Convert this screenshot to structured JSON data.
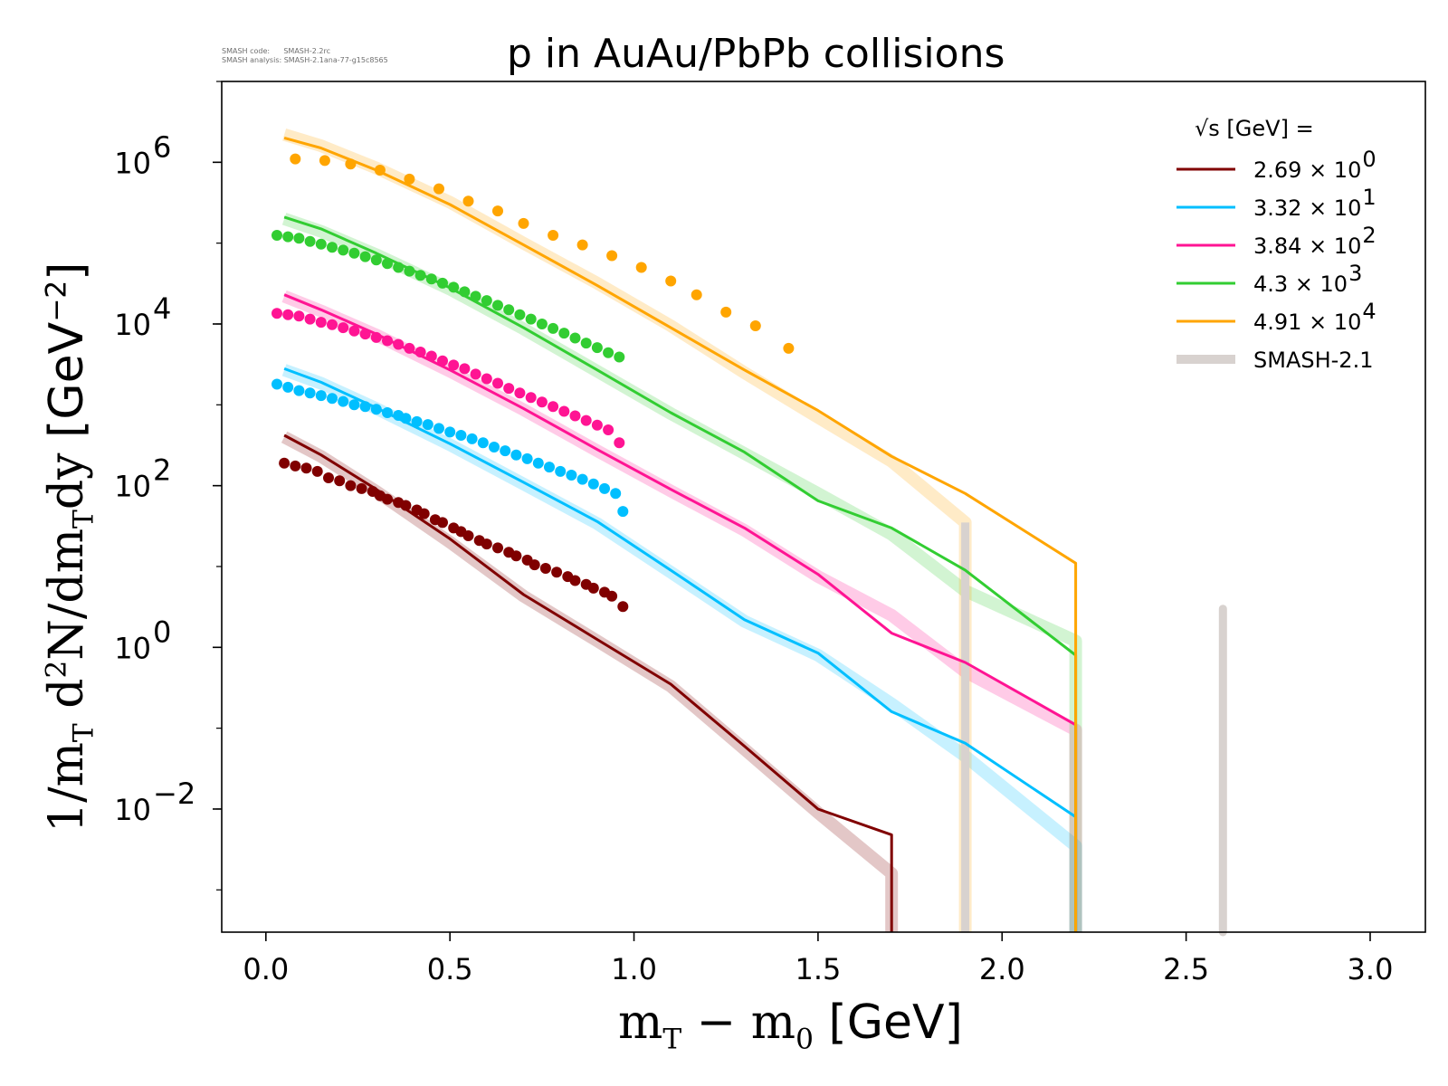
{
  "header": {
    "meta_line1": "SMASH code:      SMASH-2.2rc",
    "meta_line2": "SMASH analysis: SMASH-2.1ana-77-g15c8565",
    "title": "p in AuAu/PbPb collisions"
  },
  "axes": {
    "x_label_main": "m",
    "x_label_sub1": "T",
    "x_label_mid": " − m",
    "x_label_sub2": "0",
    "x_label_unit": " [GeV]",
    "y_label_a": "1/m",
    "y_label_sub1": "T",
    "y_label_b": " d",
    "y_label_sup": "2",
    "y_label_c": "N/dm",
    "y_label_sub2": "T",
    "y_label_d": "dy ",
    "y_label_unit": "[GeV",
    "y_label_unit_sup": "−2",
    "y_label_unit_end": "]"
  },
  "legend": {
    "header": "√s  [GeV] =",
    "entries": [
      {
        "label": "2.69 × 10",
        "exp": "0",
        "color": "#800000"
      },
      {
        "label": "3.32 × 10",
        "exp": "1",
        "color": "#00bfff"
      },
      {
        "label": "3.84 × 10",
        "exp": "2",
        "color": "#ff1493"
      },
      {
        "label": "4.3 × 10",
        "exp": "3",
        "color": "#32cd32"
      },
      {
        "label": "4.91 × 10",
        "exp": "4",
        "color": "#ffa500"
      },
      {
        "label": "SMASH-2.1",
        "exp": "",
        "color": "#d8d2cf"
      }
    ]
  },
  "chart_data": {
    "type": "line",
    "x_scale": "linear",
    "y_scale": "log",
    "xlim": [
      -0.12,
      3.15
    ],
    "ylim": [
      0.0003,
      10000000
    ],
    "x_ticks": [
      {
        "value": 0.0,
        "label": "0.0"
      },
      {
        "value": 0.5,
        "label": "0.5"
      },
      {
        "value": 1.0,
        "label": "1.0"
      },
      {
        "value": 1.5,
        "label": "1.5"
      },
      {
        "value": 2.0,
        "label": "2.0"
      },
      {
        "value": 2.5,
        "label": "2.5"
      },
      {
        "value": 3.0,
        "label": "3.0"
      }
    ],
    "y_ticks": [
      {
        "value": 1000000,
        "base": "10",
        "exp": "6"
      },
      {
        "value": 10000,
        "base": "10",
        "exp": "4"
      },
      {
        "value": 100,
        "base": "10",
        "exp": "2"
      },
      {
        "value": 1,
        "base": "10",
        "exp": "0"
      },
      {
        "value": 0.01,
        "base": "10",
        "exp": "−2"
      }
    ],
    "legend_position": "top-right",
    "series": [
      {
        "name": "2.69 × 10^0",
        "color": "#800000",
        "model": [
          [
            0.05,
            420
          ],
          [
            0.15,
            240
          ],
          [
            0.3,
            90
          ],
          [
            0.5,
            22
          ],
          [
            0.7,
            4.5
          ],
          [
            0.9,
            1.25
          ],
          [
            1.1,
            0.35
          ],
          [
            1.3,
            0.06
          ],
          [
            1.5,
            0.01
          ],
          [
            1.7,
            0.0048
          ],
          [
            1.7,
            0.0003
          ]
        ],
        "smash21": [
          [
            0.05,
            400
          ],
          [
            0.15,
            230
          ],
          [
            0.3,
            85
          ],
          [
            0.5,
            20
          ],
          [
            0.7,
            4.3
          ],
          [
            0.9,
            1.2
          ],
          [
            1.1,
            0.33
          ],
          [
            1.3,
            0.055
          ],
          [
            1.5,
            0.009
          ],
          [
            1.7,
            0.0016
          ],
          [
            1.7,
            0.0003
          ]
        ],
        "data": [
          [
            0.05,
            190
          ],
          [
            0.08,
            175
          ],
          [
            0.11,
            165
          ],
          [
            0.14,
            150
          ],
          [
            0.17,
            125
          ],
          [
            0.2,
            115
          ],
          [
            0.23,
            100
          ],
          [
            0.26,
            92
          ],
          [
            0.29,
            85
          ],
          [
            0.31,
            75
          ],
          [
            0.33,
            68
          ],
          [
            0.36,
            62
          ],
          [
            0.38,
            57
          ],
          [
            0.41,
            50
          ],
          [
            0.43,
            45
          ],
          [
            0.46,
            38
          ],
          [
            0.48,
            35
          ],
          [
            0.51,
            30
          ],
          [
            0.53,
            27
          ],
          [
            0.55,
            24
          ],
          [
            0.58,
            21
          ],
          [
            0.6,
            19
          ],
          [
            0.63,
            17
          ],
          [
            0.66,
            15
          ],
          [
            0.68,
            13.5
          ],
          [
            0.71,
            12
          ],
          [
            0.73,
            10.5
          ],
          [
            0.76,
            9.5
          ],
          [
            0.79,
            8.5
          ],
          [
            0.82,
            7.5
          ],
          [
            0.84,
            6.7
          ],
          [
            0.87,
            6
          ],
          [
            0.89,
            5.4
          ],
          [
            0.92,
            4.8
          ],
          [
            0.94,
            4.3
          ],
          [
            0.97,
            3.2
          ]
        ]
      },
      {
        "name": "3.32 × 10^1",
        "color": "#00bfff",
        "model": [
          [
            0.05,
            2800
          ],
          [
            0.15,
            1900
          ],
          [
            0.3,
            920
          ],
          [
            0.5,
            330
          ],
          [
            0.7,
            110
          ],
          [
            0.9,
            36
          ],
          [
            1.1,
            9
          ],
          [
            1.3,
            2.2
          ],
          [
            1.5,
            0.85
          ],
          [
            1.7,
            0.16
          ],
          [
            1.9,
            0.065
          ],
          [
            2.2,
            0.008
          ],
          [
            2.2,
            0.0003
          ]
        ],
        "smash21": [
          [
            0.05,
            2700
          ],
          [
            0.15,
            1850
          ],
          [
            0.3,
            900
          ],
          [
            0.5,
            320
          ],
          [
            0.7,
            105
          ],
          [
            0.9,
            34
          ],
          [
            1.1,
            8.5
          ],
          [
            1.3,
            2.1
          ],
          [
            1.5,
            0.8
          ],
          [
            1.7,
            0.2
          ],
          [
            1.9,
            0.045
          ],
          [
            2.2,
            0.0035
          ],
          [
            2.2,
            0.0003
          ]
        ],
        "data": [
          [
            0.03,
            1800
          ],
          [
            0.06,
            1650
          ],
          [
            0.09,
            1500
          ],
          [
            0.12,
            1400
          ],
          [
            0.15,
            1300
          ],
          [
            0.18,
            1200
          ],
          [
            0.21,
            1100
          ],
          [
            0.24,
            1000
          ],
          [
            0.27,
            950
          ],
          [
            0.3,
            880
          ],
          [
            0.33,
            800
          ],
          [
            0.36,
            740
          ],
          [
            0.38,
            680
          ],
          [
            0.41,
            620
          ],
          [
            0.44,
            570
          ],
          [
            0.47,
            510
          ],
          [
            0.5,
            460
          ],
          [
            0.53,
            420
          ],
          [
            0.56,
            380
          ],
          [
            0.59,
            340
          ],
          [
            0.62,
            300
          ],
          [
            0.65,
            270
          ],
          [
            0.68,
            240
          ],
          [
            0.71,
            215
          ],
          [
            0.74,
            190
          ],
          [
            0.77,
            170
          ],
          [
            0.8,
            150
          ],
          [
            0.83,
            135
          ],
          [
            0.86,
            120
          ],
          [
            0.89,
            105
          ],
          [
            0.92,
            92
          ],
          [
            0.95,
            80
          ],
          [
            0.97,
            48
          ]
        ]
      },
      {
        "name": "3.84 × 10^2",
        "color": "#ff1493",
        "model": [
          [
            0.05,
            23000
          ],
          [
            0.15,
            15000
          ],
          [
            0.3,
            7500
          ],
          [
            0.5,
            2700
          ],
          [
            0.7,
            900
          ],
          [
            0.9,
            280
          ],
          [
            1.1,
            90
          ],
          [
            1.3,
            30
          ],
          [
            1.5,
            8
          ],
          [
            1.7,
            1.5
          ],
          [
            1.9,
            0.65
          ],
          [
            2.2,
            0.11
          ],
          [
            2.2,
            0.0003
          ]
        ],
        "smash21": [
          [
            0.05,
            22000
          ],
          [
            0.15,
            14500
          ],
          [
            0.3,
            7300
          ],
          [
            0.5,
            2600
          ],
          [
            0.7,
            870
          ],
          [
            0.9,
            270
          ],
          [
            1.1,
            86
          ],
          [
            1.3,
            28
          ],
          [
            1.5,
            7.5
          ],
          [
            1.7,
            2.5
          ],
          [
            1.9,
            0.5
          ],
          [
            2.2,
            0.095
          ],
          [
            2.2,
            0.0003
          ]
        ],
        "data": [
          [
            0.03,
            13500
          ],
          [
            0.06,
            13000
          ],
          [
            0.09,
            12500
          ],
          [
            0.12,
            11500
          ],
          [
            0.15,
            10500
          ],
          [
            0.18,
            9800
          ],
          [
            0.21,
            9000
          ],
          [
            0.24,
            8200
          ],
          [
            0.27,
            7500
          ],
          [
            0.3,
            6800
          ],
          [
            0.33,
            6200
          ],
          [
            0.36,
            5600
          ],
          [
            0.39,
            5000
          ],
          [
            0.42,
            4500
          ],
          [
            0.45,
            4000
          ],
          [
            0.48,
            3500
          ],
          [
            0.51,
            3100
          ],
          [
            0.54,
            2800
          ],
          [
            0.57,
            2400
          ],
          [
            0.6,
            2100
          ],
          [
            0.63,
            1850
          ],
          [
            0.66,
            1600
          ],
          [
            0.69,
            1400
          ],
          [
            0.72,
            1230
          ],
          [
            0.75,
            1080
          ],
          [
            0.78,
            950
          ],
          [
            0.81,
            830
          ],
          [
            0.84,
            730
          ],
          [
            0.87,
            640
          ],
          [
            0.9,
            560
          ],
          [
            0.93,
            490
          ],
          [
            0.96,
            340
          ]
        ]
      },
      {
        "name": "4.3 × 10^3",
        "color": "#32cd32",
        "model": [
          [
            0.05,
            210000
          ],
          [
            0.15,
            150000
          ],
          [
            0.3,
            75000
          ],
          [
            0.5,
            28000
          ],
          [
            0.7,
            9000
          ],
          [
            0.9,
            2700
          ],
          [
            1.1,
            800
          ],
          [
            1.3,
            260
          ],
          [
            1.5,
            65
          ],
          [
            1.7,
            30
          ],
          [
            1.9,
            9
          ],
          [
            2.2,
            0.8
          ],
          [
            2.2,
            0.0003
          ]
        ],
        "smash21": [
          [
            0.05,
            200000
          ],
          [
            0.15,
            140000
          ],
          [
            0.3,
            72000
          ],
          [
            0.5,
            27000
          ],
          [
            0.7,
            8700
          ],
          [
            0.9,
            2600
          ],
          [
            1.1,
            780
          ],
          [
            1.3,
            250
          ],
          [
            1.5,
            80
          ],
          [
            1.7,
            25
          ],
          [
            1.9,
            5
          ],
          [
            2.2,
            1.2
          ],
          [
            2.2,
            0.0003
          ]
        ],
        "data": [
          [
            0.03,
            125000
          ],
          [
            0.06,
            120000
          ],
          [
            0.09,
            115000
          ],
          [
            0.12,
            105000
          ],
          [
            0.15,
            97000
          ],
          [
            0.18,
            89000
          ],
          [
            0.21,
            82000
          ],
          [
            0.24,
            75000
          ],
          [
            0.27,
            68000
          ],
          [
            0.3,
            62000
          ],
          [
            0.33,
            56000
          ],
          [
            0.36,
            50000
          ],
          [
            0.39,
            45000
          ],
          [
            0.42,
            40000
          ],
          [
            0.45,
            36000
          ],
          [
            0.48,
            32000
          ],
          [
            0.51,
            28500
          ],
          [
            0.54,
            25000
          ],
          [
            0.57,
            22000
          ],
          [
            0.6,
            19500
          ],
          [
            0.63,
            17000
          ],
          [
            0.66,
            15000
          ],
          [
            0.69,
            13000
          ],
          [
            0.72,
            11500
          ],
          [
            0.75,
            10000
          ],
          [
            0.78,
            8800
          ],
          [
            0.81,
            7700
          ],
          [
            0.84,
            6700
          ],
          [
            0.87,
            5800
          ],
          [
            0.9,
            5100
          ],
          [
            0.93,
            4400
          ],
          [
            0.96,
            3900
          ]
        ]
      },
      {
        "name": "4.91 × 10^4",
        "color": "#ffa500",
        "model": [
          [
            0.05,
            2000000
          ],
          [
            0.15,
            1500000
          ],
          [
            0.3,
            800000
          ],
          [
            0.5,
            300000
          ],
          [
            0.7,
            95000
          ],
          [
            0.9,
            30000
          ],
          [
            1.1,
            9000
          ],
          [
            1.3,
            2700
          ],
          [
            1.5,
            850
          ],
          [
            1.7,
            230
          ],
          [
            1.9,
            80
          ],
          [
            2.2,
            11
          ],
          [
            2.2,
            0.0003
          ]
        ],
        "smash21": [
          [
            0.05,
            2200000
          ],
          [
            0.15,
            1600000
          ],
          [
            0.3,
            850000
          ],
          [
            0.5,
            320000
          ],
          [
            0.7,
            100000
          ],
          [
            0.9,
            32000
          ],
          [
            1.1,
            9500
          ],
          [
            1.3,
            2500
          ],
          [
            1.5,
            700
          ],
          [
            1.7,
            200
          ],
          [
            1.9,
            35
          ],
          [
            1.9,
            0.0003
          ]
        ],
        "data": [
          [
            0.08,
            1100000
          ],
          [
            0.16,
            1050000
          ],
          [
            0.23,
            950000
          ],
          [
            0.31,
            800000
          ],
          [
            0.39,
            620000
          ],
          [
            0.47,
            470000
          ],
          [
            0.55,
            330000
          ],
          [
            0.63,
            250000
          ],
          [
            0.7,
            175000
          ],
          [
            0.78,
            125000
          ],
          [
            0.86,
            95000
          ],
          [
            0.94,
            70000
          ],
          [
            1.02,
            50000
          ],
          [
            1.1,
            34000
          ],
          [
            1.17,
            23000
          ],
          [
            1.25,
            14000
          ],
          [
            1.33,
            9500
          ],
          [
            1.42,
            5000
          ]
        ]
      },
      {
        "name": "SMASH-2.1",
        "color": "#d8d2cf",
        "model": [
          [
            2.6,
            3.0
          ],
          [
            2.6,
            0.0003
          ]
        ],
        "smash21": [],
        "data": []
      }
    ]
  }
}
